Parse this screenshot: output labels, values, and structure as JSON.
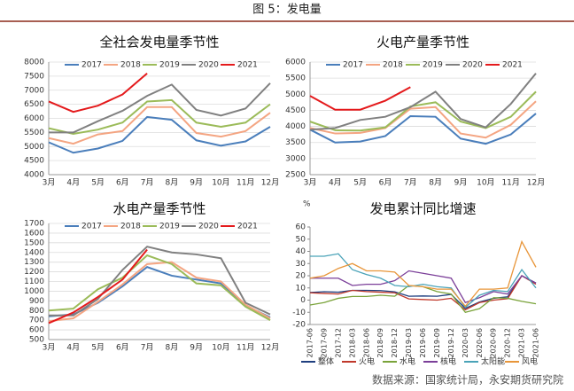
{
  "header": "图 5：发电量",
  "source": "数据来源：国家统计局，永安期货研究院",
  "chart_data": [
    {
      "type": "line",
      "title": "全社会发电量季节性",
      "categories": [
        "3月",
        "4月",
        "5月",
        "6月",
        "7月",
        "8月",
        "9月",
        "10月",
        "11月",
        "12月"
      ],
      "ylim": [
        4000,
        8000
      ],
      "yticks": [
        4000,
        4500,
        5000,
        5500,
        6000,
        6500,
        7000,
        7500,
        8000
      ],
      "grid": true,
      "legend": "top",
      "series": [
        {
          "name": "2017",
          "color": "#4a7ebb",
          "values": [
            5150,
            4780,
            4930,
            5200,
            6050,
            5950,
            5220,
            5030,
            5180,
            5700
          ]
        },
        {
          "name": "2018",
          "color": "#f4a582",
          "values": [
            5300,
            5100,
            5430,
            5550,
            6400,
            6400,
            5480,
            5350,
            5550,
            6200
          ]
        },
        {
          "name": "2019",
          "color": "#9bbb59",
          "values": [
            5650,
            5450,
            5600,
            5850,
            6600,
            6650,
            5850,
            5700,
            5850,
            6500
          ]
        },
        {
          "name": "2020",
          "color": "#808080",
          "values": [
            5500,
            5500,
            5900,
            6270,
            6800,
            7200,
            6300,
            6100,
            6350,
            7250
          ]
        },
        {
          "name": "2021",
          "color": "#e41a1c",
          "values": [
            6600,
            6230,
            6450,
            6850,
            7600,
            null,
            null,
            null,
            null,
            null
          ]
        }
      ]
    },
    {
      "type": "line",
      "title": "火电产量季节性",
      "categories": [
        "3月",
        "4月",
        "5月",
        "6月",
        "7月",
        "8月",
        "9月",
        "10月",
        "11月",
        "12月"
      ],
      "ylim": [
        2500,
        6000
      ],
      "yticks": [
        2500,
        3000,
        3500,
        4000,
        4500,
        5000,
        5500,
        6000
      ],
      "grid": true,
      "legend": "top",
      "series": [
        {
          "name": "2017",
          "color": "#4a7ebb",
          "values": [
            3900,
            3500,
            3530,
            3700,
            4320,
            4300,
            3620,
            3460,
            3750,
            4400
          ]
        },
        {
          "name": "2018",
          "color": "#f4a582",
          "values": [
            3950,
            3780,
            3800,
            3950,
            4550,
            4600,
            3780,
            3650,
            4050,
            4780
          ]
        },
        {
          "name": "2019",
          "color": "#9bbb59",
          "values": [
            4150,
            3880,
            3870,
            3970,
            4620,
            4750,
            4150,
            3950,
            4300,
            5080
          ]
        },
        {
          "name": "2020",
          "color": "#808080",
          "values": [
            3900,
            3950,
            4200,
            4300,
            4600,
            5080,
            4230,
            3970,
            4700,
            5650
          ]
        },
        {
          "name": "2021",
          "color": "#e41a1c",
          "values": [
            4950,
            4520,
            4520,
            4800,
            5220,
            null,
            null,
            null,
            null,
            null
          ]
        }
      ]
    },
    {
      "type": "line",
      "title": "水电产量季节性",
      "categories": [
        "3月",
        "4月",
        "5月",
        "6月",
        "7月",
        "8月",
        "9月",
        "10月",
        "11月",
        "12月"
      ],
      "ylim": [
        500,
        1700
      ],
      "yticks": [
        500,
        600,
        700,
        800,
        900,
        1000,
        1100,
        1200,
        1300,
        1400,
        1500,
        1600,
        1700
      ],
      "grid": true,
      "legend": "top",
      "series": [
        {
          "name": "2017",
          "color": "#4a7ebb",
          "values": [
            740,
            760,
            880,
            1050,
            1250,
            1160,
            1120,
            1080,
            850,
            730
          ]
        },
        {
          "name": "2018",
          "color": "#f4a582",
          "values": [
            690,
            720,
            890,
            1070,
            1280,
            1300,
            1140,
            1100,
            860,
            720
          ]
        },
        {
          "name": "2019",
          "color": "#9bbb59",
          "values": [
            800,
            820,
            1020,
            1140,
            1370,
            1280,
            1080,
            1060,
            840,
            700
          ]
        },
        {
          "name": "2020",
          "color": "#808080",
          "values": [
            750,
            750,
            920,
            1220,
            1460,
            1400,
            1380,
            1340,
            880,
            760
          ]
        },
        {
          "name": "2021",
          "color": "#e41a1c",
          "values": [
            670,
            780,
            940,
            1120,
            1430,
            null,
            null,
            null,
            null,
            null
          ]
        }
      ]
    },
    {
      "type": "line",
      "title": "发电累计同比增速",
      "ylabel": "%",
      "categories": [
        "2017-06",
        "2017-09",
        "2017-12",
        "2018-03",
        "2018-06",
        "2018-09",
        "2018-12",
        "2019-03",
        "2019-06",
        "2019-09",
        "2019-12",
        "2020-03",
        "2020-06",
        "2020-09",
        "2020-12",
        "2021-03",
        "2021-06"
      ],
      "ylim": [
        -20,
        60
      ],
      "yticks": [
        -20,
        -10,
        0,
        10,
        20,
        30,
        40,
        50,
        60
      ],
      "grid": false,
      "legend": "bottom",
      "series": [
        {
          "name": "整体",
          "color": "#1f3f7f",
          "values": [
            6.3,
            6.9,
            6.5,
            8,
            8,
            7.8,
            6.8,
            3.2,
            3.4,
            3.2,
            4.7,
            -6.8,
            -1.5,
            1.5,
            2.7,
            20,
            14
          ]
        },
        {
          "name": "火电",
          "color": "#c0392b",
          "values": [
            6,
            5.5,
            5,
            8,
            7,
            6.5,
            6,
            1,
            0.5,
            0,
            1.5,
            -8,
            -2,
            0,
            1.2,
            20,
            13
          ]
        },
        {
          "name": "水电",
          "color": "#7aa33a",
          "values": [
            -4,
            -2,
            1.5,
            3,
            3,
            4,
            3.2,
            12,
            11,
            7,
            5,
            -10,
            -7,
            2,
            1.5,
            -1,
            -3
          ]
        },
        {
          "name": "核电",
          "color": "#7b3f99",
          "values": [
            18,
            18,
            18,
            12,
            13,
            13,
            16,
            24,
            22,
            20,
            18,
            -2,
            2,
            7,
            5,
            20,
            14
          ]
        },
        {
          "name": "太阳能",
          "color": "#4aa3b8",
          "values": [
            36,
            36,
            38,
            25,
            21,
            18,
            12,
            11,
            13,
            11,
            10,
            -6,
            4,
            8,
            7,
            25,
            10
          ]
        },
        {
          "name": "风电",
          "color": "#e8963a",
          "values": [
            18,
            20,
            26,
            30,
            24,
            24,
            23,
            12,
            11,
            9,
            9,
            -5,
            9,
            9,
            10,
            48,
            27
          ]
        }
      ]
    }
  ]
}
